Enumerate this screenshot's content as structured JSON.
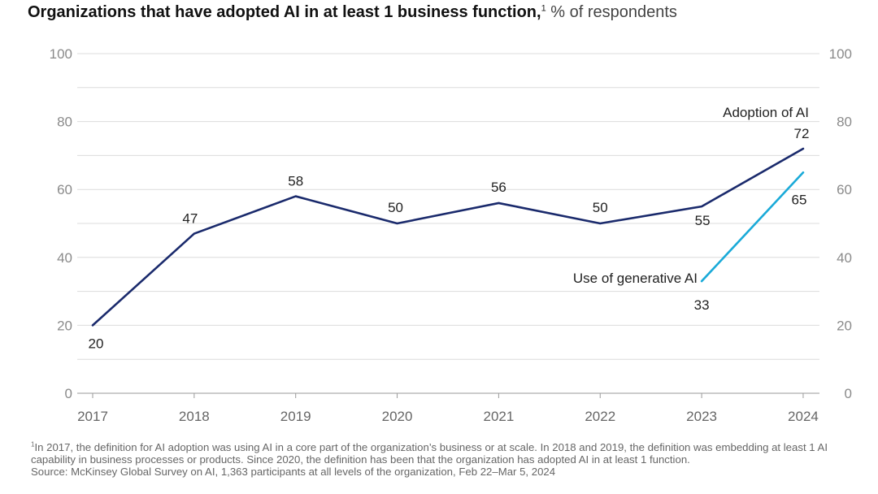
{
  "title": {
    "main": "Organizations that have adopted AI in at least 1 business function,",
    "footnote_marker": "1",
    "unit": "% of respondents"
  },
  "chart_data": {
    "type": "line",
    "x": [
      "2017",
      "2018",
      "2019",
      "2020",
      "2021",
      "2022",
      "2023",
      "2024"
    ],
    "ylim": [
      0,
      100
    ],
    "yticks": [
      "0",
      "20",
      "40",
      "60",
      "80",
      "100"
    ],
    "grid": true,
    "series": [
      {
        "name": "Adoption of AI",
        "color": "#1a2a6c",
        "x": [
          "2017",
          "2018",
          "2019",
          "2020",
          "2021",
          "2022",
          "2023",
          "2024"
        ],
        "values": [
          20,
          47,
          58,
          50,
          56,
          50,
          55,
          72
        ],
        "labels": [
          "20",
          "47",
          "58",
          "50",
          "56",
          "50",
          "55",
          "72"
        ]
      },
      {
        "name": "Use of generative AI",
        "color": "#1aaad8",
        "x": [
          "2023",
          "2024"
        ],
        "values": [
          33,
          65
        ],
        "labels": [
          "33",
          "65"
        ]
      }
    ]
  },
  "footnote": {
    "marker": "1",
    "text": "In 2017, the definition for AI adoption was using AI in a core part of the organization’s business or at scale. In 2018 and 2019, the definition was embedding at least 1 AI capability in business processes or products. Since 2020, the definition has been that the organization has adopted AI in at least 1 function.",
    "source": "Source: McKinsey Global Survey on AI, 1,363 participants at all levels of the organization, Feb 22–Mar 5, 2024"
  }
}
